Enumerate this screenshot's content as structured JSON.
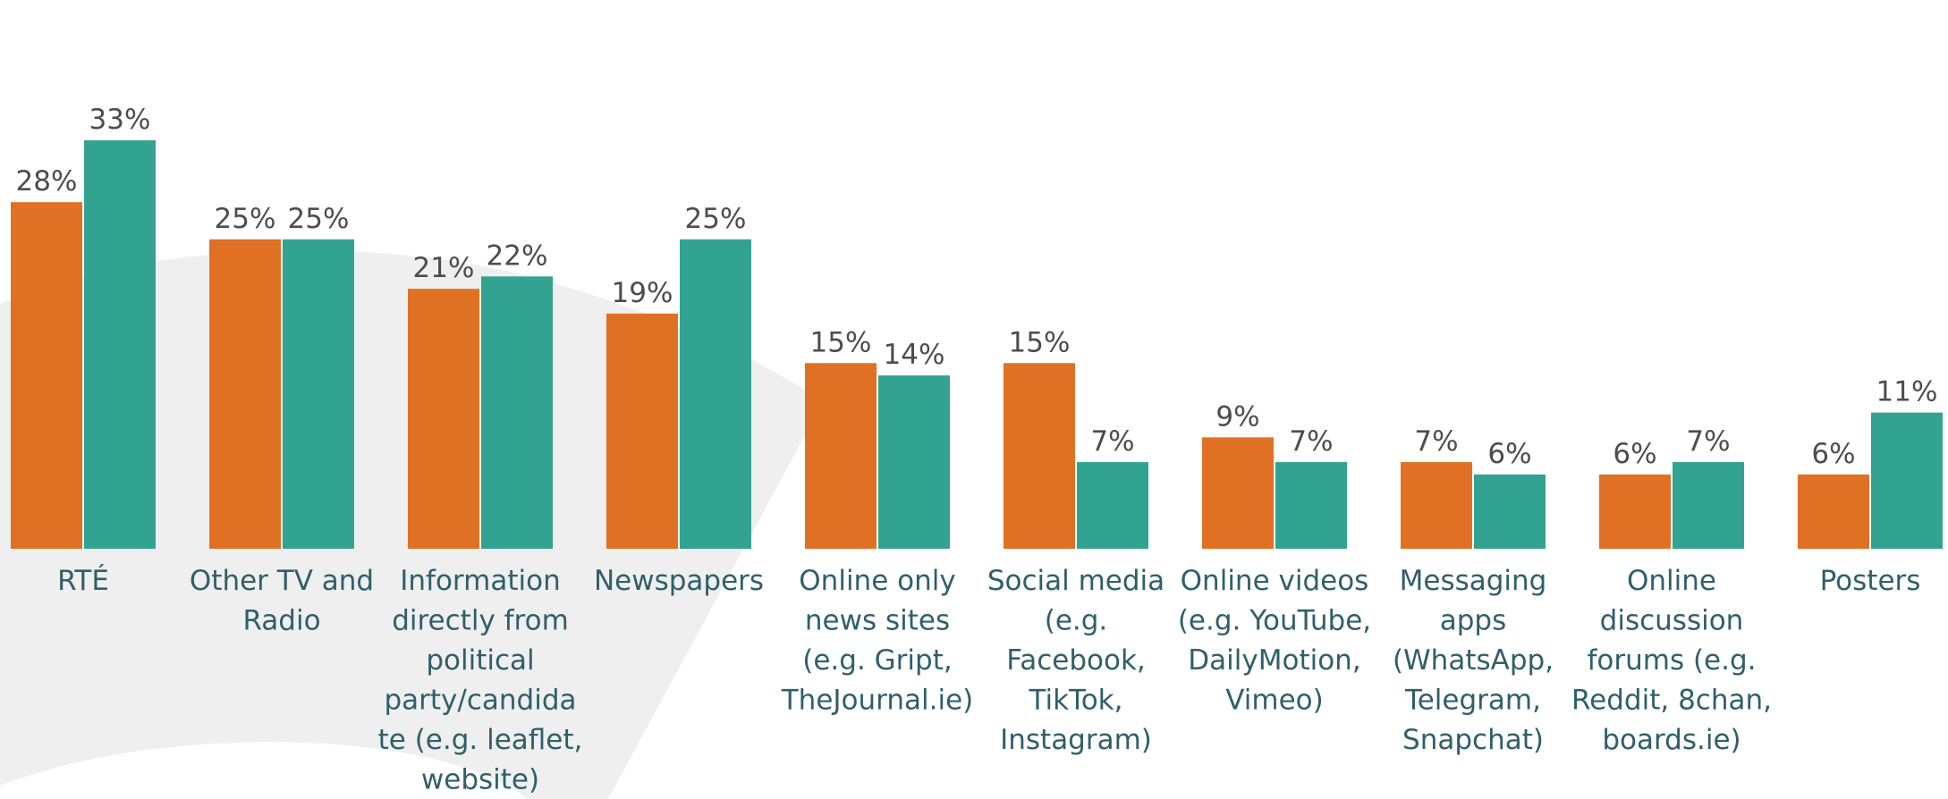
{
  "chart_data": {
    "type": "bar",
    "categories": [
      "RTÉ",
      "Other TV and Radio",
      "Information directly from political party/candidate (e.g. leaflet, website)",
      "Newspapers",
      "Online only news sites (e.g. Gript, TheJournal.ie)",
      "Social media (e.g. Facebook, TikTok, Instagram)",
      "Online videos (e.g. YouTube, DailyMotion, Vimeo)",
      "Messaging apps (WhatsApp, Telegram, Snapchat)",
      "Online discussion forums (e.g. Reddit, 8chan, boards.ie)",
      "Posters"
    ],
    "category_lines": [
      [
        "RTÉ"
      ],
      [
        "Other TV and",
        "Radio"
      ],
      [
        "Information",
        "directly from",
        "political",
        "party/candida",
        "te (e.g. leaflet,",
        "website)"
      ],
      [
        "Newspapers"
      ],
      [
        "Online only",
        "news sites",
        "(e.g. Gript,",
        "TheJournal.ie)"
      ],
      [
        "Social media",
        "(e.g.",
        "Facebook,",
        "TikTok,",
        "Instagram)"
      ],
      [
        "Online videos",
        "(e.g. YouTube,",
        "DailyMotion,",
        "Vimeo)"
      ],
      [
        "Messaging",
        "apps",
        "(WhatsApp,",
        "Telegram,",
        "Snapchat)"
      ],
      [
        "Online",
        "discussion",
        "forums (e.g.",
        "Reddit, 8chan,",
        "boards.ie)"
      ],
      [
        "Posters"
      ]
    ],
    "series": [
      {
        "values": [
          28,
          25,
          21,
          19,
          15,
          15,
          9,
          7,
          6,
          6
        ],
        "color": "#e07124"
      },
      {
        "values": [
          33,
          25,
          22,
          25,
          14,
          7,
          7,
          6,
          7,
          11
        ],
        "color": "#32a391"
      }
    ],
    "value_labels": [
      [
        "28%",
        "25%",
        "21%",
        "19%",
        "15%",
        "15%",
        "9%",
        "7%",
        "6%",
        "6%"
      ],
      [
        "33%",
        "25%",
        "22%",
        "25%",
        "14%",
        "7%",
        "7%",
        "6%",
        "7%",
        "11%"
      ]
    ],
    "ylim": [
      0,
      33
    ],
    "grid": false,
    "legend": "none",
    "colors": {
      "label_text": "#305f6b",
      "value_text": "#4d4d4d",
      "background_arc": "#efefef"
    }
  }
}
